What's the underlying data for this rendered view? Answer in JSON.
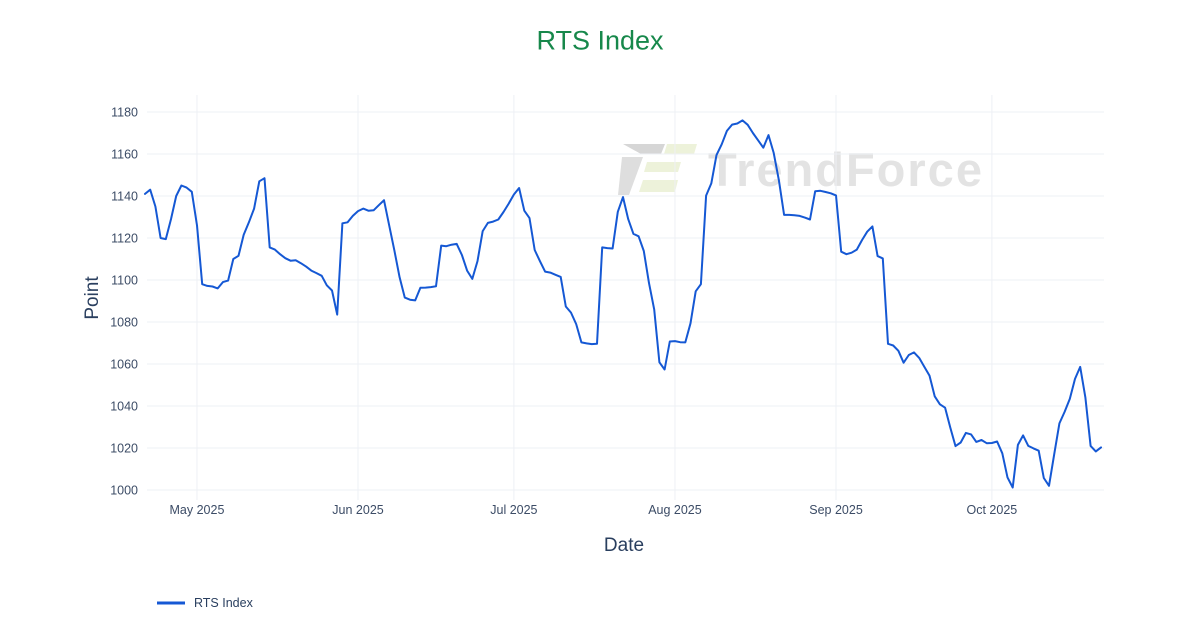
{
  "title": "RTS Index",
  "watermark": {
    "text": "TrendForce"
  },
  "colors": {
    "line": "#1558d4",
    "title": "#17884b",
    "axis_text": "#2a3f5f",
    "tick_text": "#3c4c66",
    "grid": "#eef0f5",
    "watermark": "#e3e3e3",
    "background": "#ffffff"
  },
  "axes": {
    "x_title": "Date",
    "y_title": "Point",
    "y_ticks": [
      1000,
      1020,
      1040,
      1060,
      1080,
      1100,
      1120,
      1140,
      1160,
      1180
    ],
    "x_ticks": [
      {
        "label": "May 2025",
        "day_index": 10
      },
      {
        "label": "Jun 2025",
        "day_index": 41
      },
      {
        "label": "Jul 2025",
        "day_index": 71
      },
      {
        "label": "Aug 2025",
        "day_index": 102
      },
      {
        "label": "Sep 2025",
        "day_index": 133
      },
      {
        "label": "Oct 2025",
        "day_index": 163
      }
    ]
  },
  "legend": {
    "items": [
      {
        "label": "RTS Index"
      }
    ]
  },
  "chart_data": {
    "type": "line",
    "title": "RTS Index",
    "xlabel": "Date",
    "ylabel": "Point",
    "x_range": [
      "2025-04-21",
      "2025-10-22"
    ],
    "frequency": "daily",
    "ylim": [
      994,
      1188
    ],
    "grid": true,
    "legend_position": "bottom-left",
    "series": [
      {
        "name": "RTS Index",
        "color": "#1558d4",
        "dates": [
          "2025-04-21",
          "2025-04-22",
          "2025-04-23",
          "2025-04-24",
          "2025-04-25",
          "2025-04-26",
          "2025-04-27",
          "2025-04-28",
          "2025-04-29",
          "2025-04-30",
          "2025-05-01",
          "2025-05-02",
          "2025-05-03",
          "2025-05-04",
          "2025-05-05",
          "2025-05-06",
          "2025-05-07",
          "2025-05-08",
          "2025-05-09",
          "2025-05-10",
          "2025-05-11",
          "2025-05-12",
          "2025-05-13",
          "2025-05-14",
          "2025-05-15",
          "2025-05-16",
          "2025-05-17",
          "2025-05-18",
          "2025-05-19",
          "2025-05-20",
          "2025-05-21",
          "2025-05-22",
          "2025-05-23",
          "2025-05-24",
          "2025-05-25",
          "2025-05-26",
          "2025-05-27",
          "2025-05-28",
          "2025-05-29",
          "2025-05-30",
          "2025-05-31",
          "2025-06-01",
          "2025-06-02",
          "2025-06-03",
          "2025-06-04",
          "2025-06-05",
          "2025-06-06",
          "2025-06-07",
          "2025-06-08",
          "2025-06-09",
          "2025-06-10",
          "2025-06-11",
          "2025-06-12",
          "2025-06-13",
          "2025-06-14",
          "2025-06-15",
          "2025-06-16",
          "2025-06-17",
          "2025-06-18",
          "2025-06-19",
          "2025-06-20",
          "2025-06-21",
          "2025-06-22",
          "2025-06-23",
          "2025-06-24",
          "2025-06-25",
          "2025-06-26",
          "2025-06-27",
          "2025-06-28",
          "2025-06-29",
          "2025-06-30",
          "2025-07-01",
          "2025-07-02",
          "2025-07-03",
          "2025-07-04",
          "2025-07-05",
          "2025-07-06",
          "2025-07-07",
          "2025-07-08",
          "2025-07-09",
          "2025-07-10",
          "2025-07-11",
          "2025-07-12",
          "2025-07-13",
          "2025-07-14",
          "2025-07-15",
          "2025-07-16",
          "2025-07-17",
          "2025-07-18",
          "2025-07-19",
          "2025-07-20",
          "2025-07-21",
          "2025-07-22",
          "2025-07-23",
          "2025-07-24",
          "2025-07-25",
          "2025-07-26",
          "2025-07-27",
          "2025-07-28",
          "2025-07-29",
          "2025-07-30",
          "2025-07-31",
          "2025-08-01",
          "2025-08-02",
          "2025-08-03",
          "2025-08-04",
          "2025-08-05",
          "2025-08-06",
          "2025-08-07",
          "2025-08-08",
          "2025-08-09",
          "2025-08-10",
          "2025-08-11",
          "2025-08-12",
          "2025-08-13",
          "2025-08-14",
          "2025-08-15",
          "2025-08-16",
          "2025-08-17",
          "2025-08-18",
          "2025-08-19",
          "2025-08-20",
          "2025-08-21",
          "2025-08-22",
          "2025-08-23",
          "2025-08-24",
          "2025-08-25",
          "2025-08-26",
          "2025-08-27",
          "2025-08-28",
          "2025-08-29",
          "2025-08-30",
          "2025-08-31",
          "2025-09-01",
          "2025-09-02",
          "2025-09-03",
          "2025-09-04",
          "2025-09-05",
          "2025-09-06",
          "2025-09-07",
          "2025-09-08",
          "2025-09-09",
          "2025-09-10",
          "2025-09-11",
          "2025-09-12",
          "2025-09-13",
          "2025-09-14",
          "2025-09-15",
          "2025-09-16",
          "2025-09-17",
          "2025-09-18",
          "2025-09-19",
          "2025-09-20",
          "2025-09-21",
          "2025-09-22",
          "2025-09-23",
          "2025-09-24",
          "2025-09-25",
          "2025-09-26",
          "2025-09-27",
          "2025-09-28",
          "2025-09-29",
          "2025-09-30",
          "2025-10-01",
          "2025-10-02",
          "2025-10-03",
          "2025-10-04",
          "2025-10-05",
          "2025-10-06",
          "2025-10-07",
          "2025-10-08",
          "2025-10-09",
          "2025-10-10",
          "2025-10-11",
          "2025-10-12",
          "2025-10-13",
          "2025-10-14",
          "2025-10-15",
          "2025-10-16",
          "2025-10-17",
          "2025-10-18",
          "2025-10-19",
          "2025-10-20",
          "2025-10-21",
          "2025-10-22"
        ],
        "values": [
          1141,
          1143,
          1135,
          1120,
          1119.5,
          1129,
          1140,
          1145,
          1144,
          1142,
          1126,
          1098,
          1097.2,
          1096.9,
          1096,
          1099,
          1099.7,
          1110,
          1111.5,
          1121.5,
          1127.5,
          1134,
          1147,
          1148.5,
          1115.5,
          1114.5,
          1112.3,
          1110.4,
          1109.2,
          1109.4,
          1108,
          1106.4,
          1104.5,
          1103.3,
          1102,
          1097.5,
          1095,
          1083.5,
          1127,
          1127.5,
          1130.5,
          1132.8,
          1134,
          1133,
          1133.2,
          1135.6,
          1138,
          1126,
          1114,
          1101.3,
          1091.6,
          1090.6,
          1090.3,
          1096.3,
          1096.4,
          1096.6,
          1097,
          1116.4,
          1116.1,
          1116.8,
          1117.2,
          1111.9,
          1104.5,
          1100.5,
          1109,
          1123.3,
          1127.2,
          1127.8,
          1128.8,
          1132.4,
          1136.4,
          1140.7,
          1143.8,
          1133,
          1129.5,
          1114.3,
          1109,
          1104,
          1103.5,
          1102.5,
          1101.5,
          1087.4,
          1084.5,
          1079,
          1070.3,
          1069.8,
          1069.5,
          1069.6,
          1115.5,
          1115.2,
          1115,
          1132.5,
          1139.5,
          1129,
          1122,
          1120.8,
          1113.8,
          1098.5,
          1086,
          1060.8,
          1057.4,
          1070.7,
          1070.9,
          1070.4,
          1070.3,
          1079.4,
          1094.6,
          1098,
          1140.2,
          1146,
          1159.5,
          1164.6,
          1171,
          1174,
          1174.5,
          1176,
          1173.9,
          1170,
          1166.5,
          1163,
          1169,
          1160.5,
          1147.5,
          1131,
          1131,
          1130.8,
          1130.5,
          1129.7,
          1128.8,
          1142.3,
          1142.5,
          1141.9,
          1141.3,
          1140.3,
          1113.5,
          1112.3,
          1113,
          1114.5,
          1119,
          1123,
          1125.5,
          1111.4,
          1110.3,
          1069.6,
          1068.8,
          1066.3,
          1060.6,
          1064.3,
          1065.5,
          1062.9,
          1058.7,
          1054.5,
          1044.6,
          1040.8,
          1039.2,
          1029.7,
          1020.9,
          1022.6,
          1027.2,
          1026.5,
          1022.9,
          1023.8,
          1022.3,
          1022.4,
          1023.1,
          1017.5,
          1006,
          1001.2,
          1021.5,
          1026,
          1021,
          1019.8,
          1018.7,
          1005.7,
          1002,
          1017,
          1031.7,
          1037.2,
          1043.4,
          1052.9,
          1058.6,
          1044,
          1021,
          1018.4,
          1020.3
        ]
      }
    ]
  }
}
